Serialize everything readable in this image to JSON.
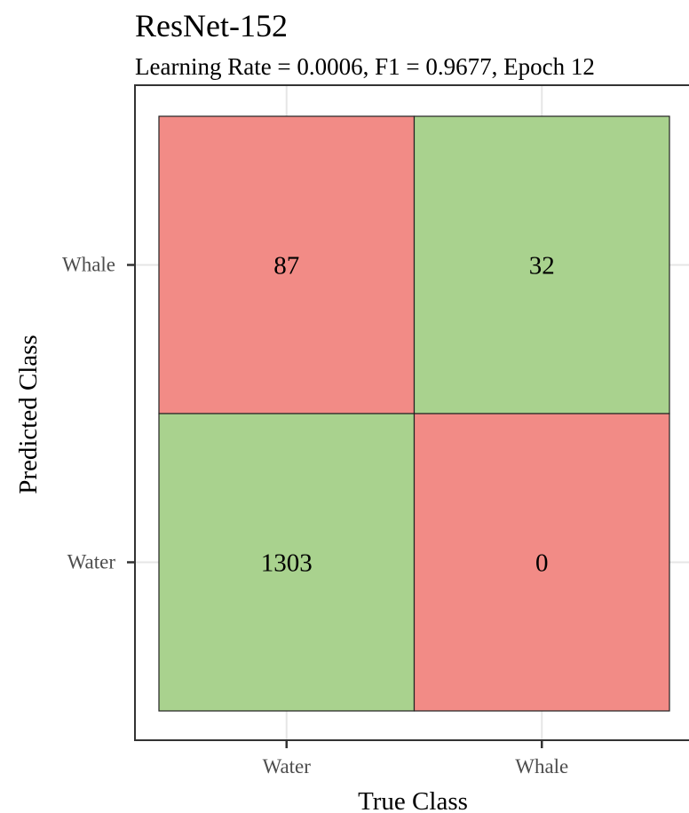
{
  "chart_data": {
    "type": "heatmap",
    "title": "ResNet-152",
    "subtitle": "Learning Rate = 0.0006, F1 = 0.9677, Epoch 12",
    "xlabel": "True Class",
    "ylabel": "Predicted Class",
    "x_categories": [
      "Water",
      "Whale"
    ],
    "y_categories": [
      "Whale",
      "Water"
    ],
    "cells": [
      {
        "true_class": "Water",
        "predicted_class": "Whale",
        "value": 87,
        "correct": false
      },
      {
        "true_class": "Whale",
        "predicted_class": "Whale",
        "value": 32,
        "correct": true
      },
      {
        "true_class": "Water",
        "predicted_class": "Water",
        "value": 1303,
        "correct": true
      },
      {
        "true_class": "Whale",
        "predicted_class": "Water",
        "value": 0,
        "correct": false
      }
    ],
    "colors": {
      "correct": "#a9d28e",
      "incorrect": "#f28b86",
      "grid": "#e6e6e6",
      "border": "#222222"
    },
    "grid": true
  }
}
